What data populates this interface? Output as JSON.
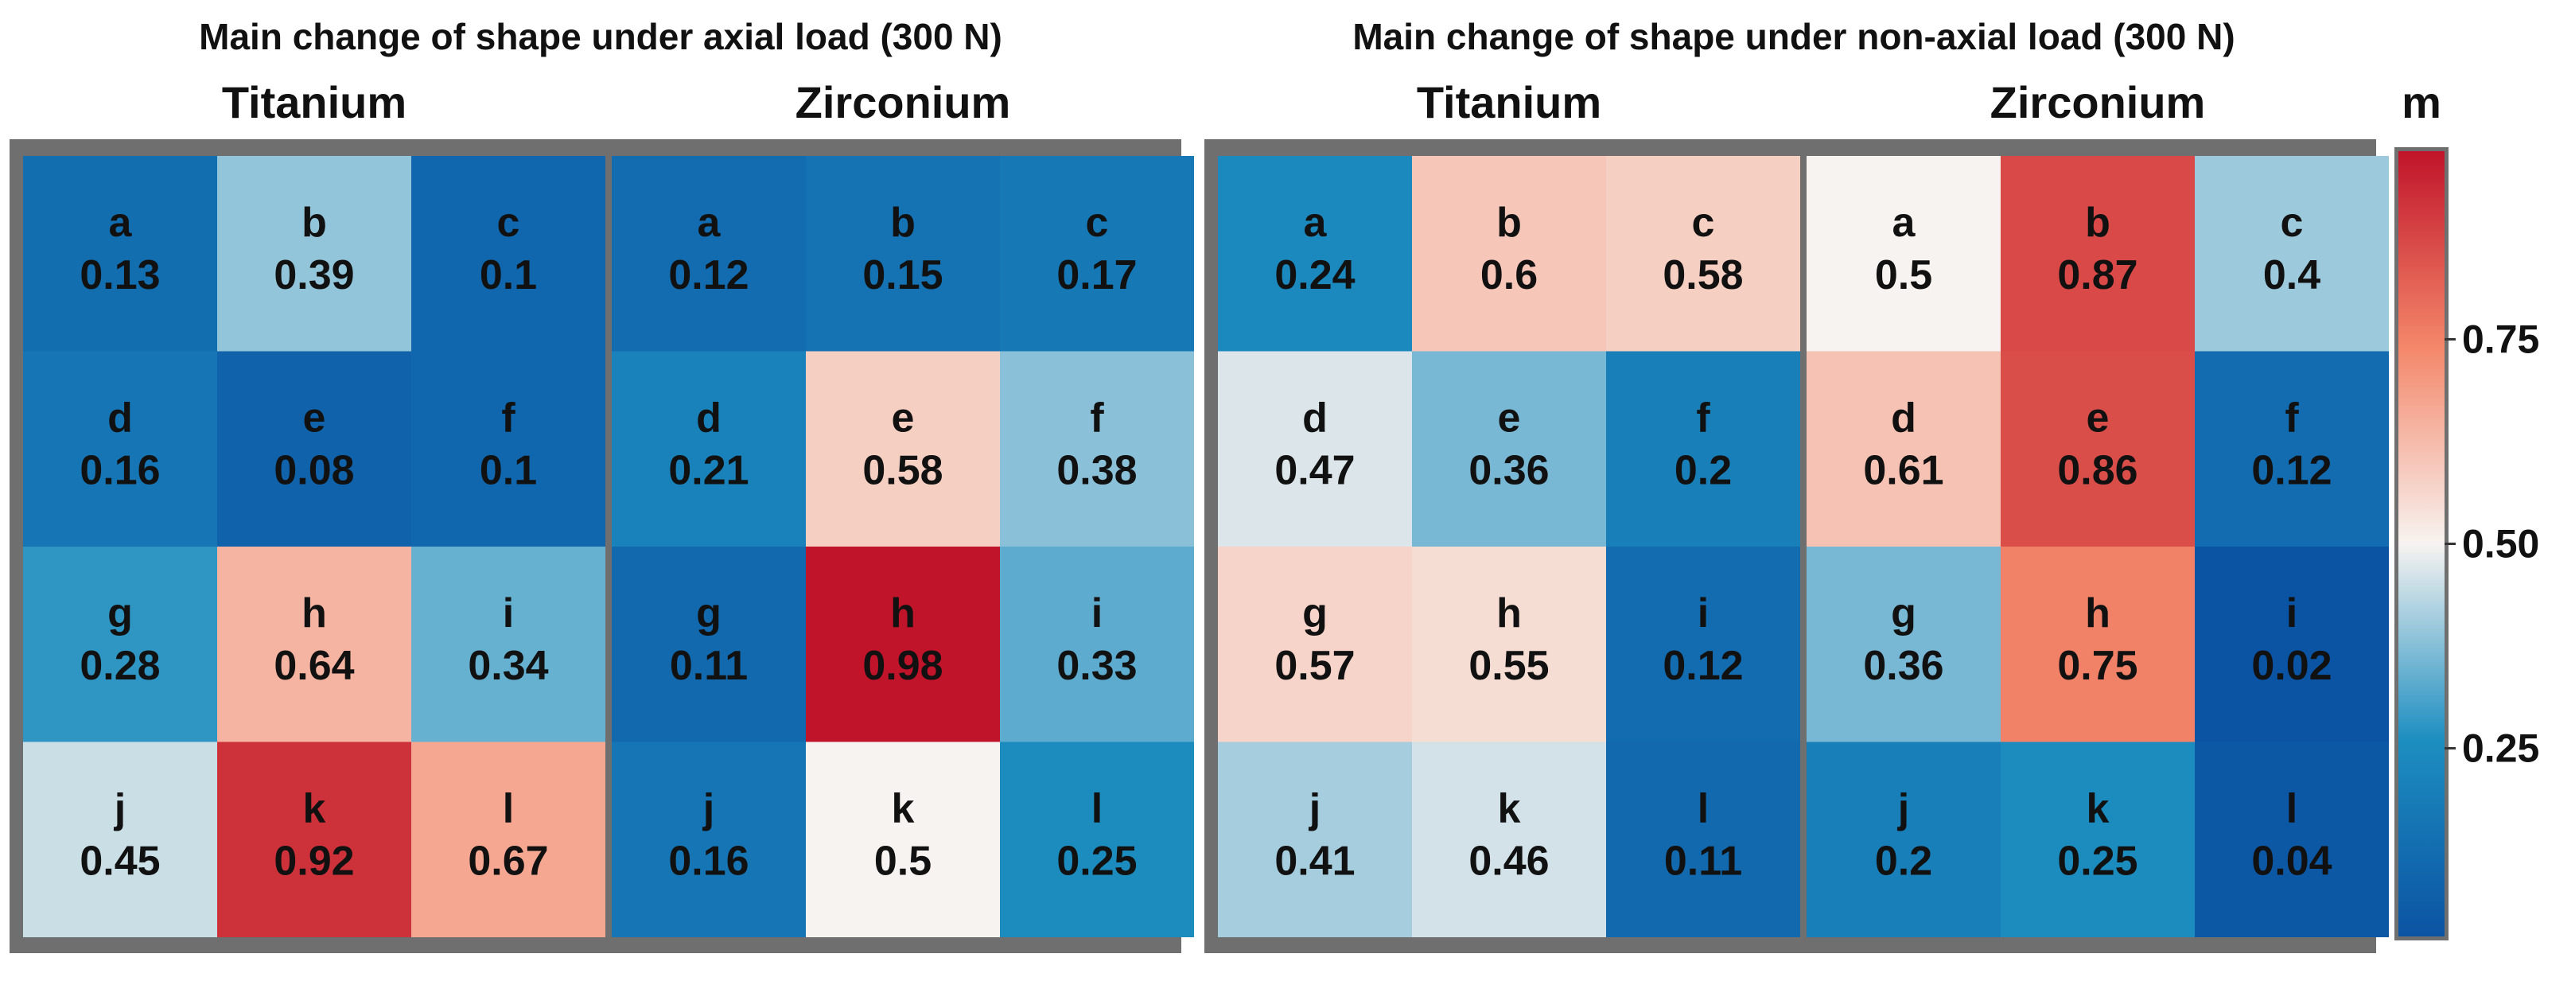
{
  "chart_data": {
    "type": "heatmap",
    "colorbar": {
      "label": "m",
      "ticks": [
        "0.75",
        "0.50",
        "0.25"
      ],
      "tick_values": [
        0.75,
        0.5,
        0.25
      ],
      "range": [
        0.02,
        0.98
      ],
      "colors": [
        "#0b53a3",
        "#1d8ec0",
        "#f7f3f0",
        "#f4876a",
        "#c0142a"
      ]
    },
    "groups": [
      {
        "title": "Main change of shape under axial load (300 N)",
        "panels": [
          {
            "name": "Titanium",
            "rows": [
              [
                {
                  "label": "a",
                  "value": 0.13
                },
                {
                  "label": "b",
                  "value": 0.39
                },
                {
                  "label": "c",
                  "value": 0.1
                }
              ],
              [
                {
                  "label": "d",
                  "value": 0.16
                },
                {
                  "label": "e",
                  "value": 0.08
                },
                {
                  "label": "f",
                  "value": 0.1
                }
              ],
              [
                {
                  "label": "g",
                  "value": 0.28
                },
                {
                  "label": "h",
                  "value": 0.64
                },
                {
                  "label": "i",
                  "value": 0.34
                }
              ],
              [
                {
                  "label": "j",
                  "value": 0.45
                },
                {
                  "label": "k",
                  "value": 0.92
                },
                {
                  "label": "l",
                  "value": 0.67
                }
              ]
            ]
          },
          {
            "name": "Zirconium",
            "rows": [
              [
                {
                  "label": "a",
                  "value": 0.12
                },
                {
                  "label": "b",
                  "value": 0.15
                },
                {
                  "label": "c",
                  "value": 0.17
                }
              ],
              [
                {
                  "label": "d",
                  "value": 0.21
                },
                {
                  "label": "e",
                  "value": 0.58
                },
                {
                  "label": "f",
                  "value": 0.38
                }
              ],
              [
                {
                  "label": "g",
                  "value": 0.11
                },
                {
                  "label": "h",
                  "value": 0.98
                },
                {
                  "label": "i",
                  "value": 0.33
                }
              ],
              [
                {
                  "label": "j",
                  "value": 0.16
                },
                {
                  "label": "k",
                  "value": 0.5
                },
                {
                  "label": "l",
                  "value": 0.25
                }
              ]
            ]
          }
        ]
      },
      {
        "title": "Main change of shape under non-axial load (300 N)",
        "panels": [
          {
            "name": "Titanium",
            "rows": [
              [
                {
                  "label": "a",
                  "value": 0.24
                },
                {
                  "label": "b",
                  "value": 0.6
                },
                {
                  "label": "c",
                  "value": 0.58
                }
              ],
              [
                {
                  "label": "d",
                  "value": 0.47
                },
                {
                  "label": "e",
                  "value": 0.36
                },
                {
                  "label": "f",
                  "value": 0.2
                }
              ],
              [
                {
                  "label": "g",
                  "value": 0.57
                },
                {
                  "label": "h",
                  "value": 0.55
                },
                {
                  "label": "i",
                  "value": 0.12
                }
              ],
              [
                {
                  "label": "j",
                  "value": 0.41
                },
                {
                  "label": "k",
                  "value": 0.46
                },
                {
                  "label": "l",
                  "value": 0.11
                }
              ]
            ]
          },
          {
            "name": "Zirconium",
            "rows": [
              [
                {
                  "label": "a",
                  "value": 0.5
                },
                {
                  "label": "b",
                  "value": 0.87
                },
                {
                  "label": "c",
                  "value": 0.4
                }
              ],
              [
                {
                  "label": "d",
                  "value": 0.61
                },
                {
                  "label": "e",
                  "value": 0.86
                },
                {
                  "label": "f",
                  "value": 0.12
                }
              ],
              [
                {
                  "label": "g",
                  "value": 0.36
                },
                {
                  "label": "h",
                  "value": 0.75
                },
                {
                  "label": "i",
                  "value": 0.02
                }
              ],
              [
                {
                  "label": "j",
                  "value": 0.2
                },
                {
                  "label": "k",
                  "value": 0.25
                },
                {
                  "label": "l",
                  "value": 0.04
                }
              ]
            ]
          }
        ]
      }
    ]
  }
}
